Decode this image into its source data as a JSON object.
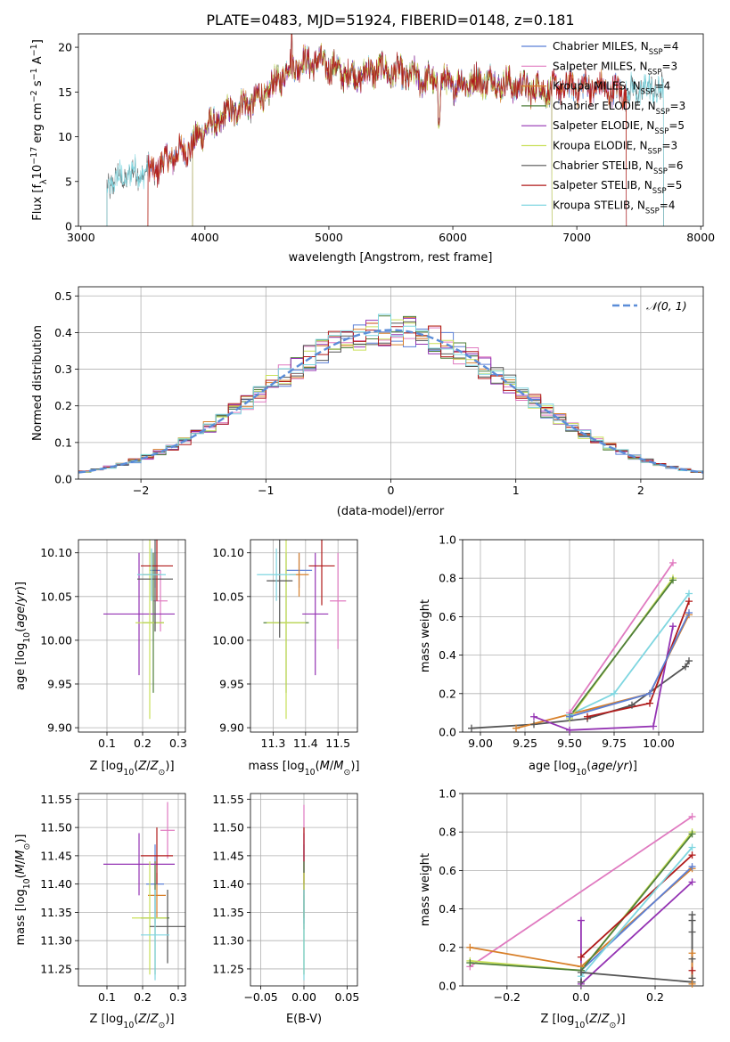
{
  "figure": {
    "title": "PLATE=0483, MJD=51924, FIBERID=0148, z=0.181"
  },
  "colors": {
    "chabrier_miles": "#5b7fd6",
    "salpeter_miles": "#e07ac0",
    "kroupa_miles": "#d8802a",
    "chabrier_elodie": "#4f7f3a",
    "salpeter_elodie": "#9433b3",
    "kroupa_elodie": "#c9e05a",
    "chabrier_stelib": "#555555",
    "salpeter_stelib": "#b01a1a",
    "kroupa_stelib": "#7fd6e0"
  },
  "chart_data": [
    {
      "id": "spectrum",
      "type": "line",
      "xlabel": "wavelength [Angstrom, rest frame]",
      "ylabel_text": "Flux [f",
      "xlim": [
        2980,
        8020
      ],
      "ylim": [
        0,
        21.5
      ],
      "xticks": [
        3000,
        4000,
        5000,
        6000,
        7000,
        8000
      ],
      "yticks": [
        0,
        5,
        10,
        15,
        20
      ],
      "legend_position": "top-right",
      "legend": [
        {
          "label": "Chabrier MILES, N",
          "n": "=4",
          "color_key": "chabrier_miles"
        },
        {
          "label": "Salpeter MILES, N",
          "n": "=3",
          "color_key": "salpeter_miles"
        },
        {
          "label": "Kroupa MILES, N",
          "n": "=4",
          "color_key": "kroupa_miles"
        },
        {
          "label": "Chabrier ELODIE, N",
          "n": "=3",
          "color_key": "chabrier_elodie"
        },
        {
          "label": "Salpeter ELODIE, N",
          "n": "=5",
          "color_key": "salpeter_elodie"
        },
        {
          "label": "Kroupa ELODIE, N",
          "n": "=3",
          "color_key": "kroupa_elodie"
        },
        {
          "label": "Chabrier STELIB, N",
          "n": "=6",
          "color_key": "chabrier_stelib"
        },
        {
          "label": "Salpeter STELIB, N",
          "n": "=5",
          "color_key": "salpeter_stelib"
        },
        {
          "label": "Kroupa STELIB, N",
          "n": "=4",
          "color_key": "kroupa_stelib"
        }
      ],
      "envelope": {
        "x": [
          3210,
          3300,
          3400,
          3500,
          3600,
          3700,
          3800,
          3900,
          4000,
          4100,
          4200,
          4300,
          4400,
          4500,
          4600,
          4700,
          4800,
          4900,
          5000,
          5100,
          5200,
          5300,
          5400,
          5500,
          5600,
          5700,
          5800,
          5900,
          6000,
          6100,
          6200,
          6300,
          6400,
          6500,
          6600,
          6700,
          6800,
          6900,
          7000,
          7100,
          7200,
          7300,
          7400,
          7500,
          7600,
          7700
        ],
        "y": [
          4.5,
          5.3,
          5.8,
          6.0,
          6.3,
          7.5,
          8.3,
          9.0,
          11.0,
          11.5,
          12.8,
          13.5,
          14.0,
          14.8,
          16.5,
          18.0,
          18.2,
          18.4,
          18.0,
          17.2,
          16.8,
          17.0,
          17.6,
          17.2,
          17.0,
          16.6,
          16.3,
          16.0,
          15.8,
          16.0,
          16.3,
          16.2,
          16.0,
          15.8,
          15.5,
          15.4,
          15.2,
          15.5,
          15.6,
          15.5,
          15.3,
          15.1,
          15.0,
          15.2,
          15.4,
          15.3
        ]
      },
      "series": [
        {
          "color_key": "chabrier_stelib",
          "xmin": 3210,
          "xmax": 7700
        },
        {
          "color_key": "kroupa_stelib",
          "xmin": 3210,
          "xmax": 7700
        },
        {
          "color_key": "chabrier_miles",
          "xmin": 3540,
          "xmax": 7400
        },
        {
          "color_key": "salpeter_miles",
          "xmin": 3540,
          "xmax": 7400
        },
        {
          "color_key": "kroupa_miles",
          "xmin": 3540,
          "xmax": 7400
        },
        {
          "color_key": "chabrier_elodie",
          "xmin": 3900,
          "xmax": 6800
        },
        {
          "color_key": "salpeter_elodie",
          "xmin": 3900,
          "xmax": 6800
        },
        {
          "color_key": "kroupa_elodie",
          "xmin": 3900,
          "xmax": 6800
        },
        {
          "color_key": "salpeter_stelib",
          "xmin": 3540,
          "xmax": 7400
        }
      ]
    },
    {
      "id": "residuals",
      "type": "line",
      "xlabel": "(data-model)/error",
      "ylabel": "Normed distribution",
      "xlim": [
        -2.5,
        2.5
      ],
      "ylim": [
        0,
        0.525
      ],
      "xticks": [
        -2,
        -1,
        0,
        1,
        2
      ],
      "xtick_labels": [
        "−2",
        "−1",
        "0",
        "1",
        "2"
      ],
      "yticks": [
        0.0,
        0.1,
        0.2,
        0.3,
        0.4,
        0.5
      ],
      "grid": true,
      "legend_position": "top-right",
      "legend_label": "𝒩(0, 1)",
      "gaussian_color": "#5b8dd8",
      "bin_width": 0.1
    },
    {
      "id": "age_vs_z",
      "type": "scatter",
      "xlabel": "Z [log₁₀(Z/Z⊙)]",
      "ylabel": "age  [log₁₀(age/yr)]",
      "xlim": [
        0.02,
        0.32
      ],
      "ylim": [
        9.895,
        10.115
      ],
      "xticks": [
        0.1,
        0.2,
        0.3
      ],
      "yticks": [
        9.9,
        9.95,
        10.0,
        10.05,
        10.1
      ],
      "grid": true,
      "points": [
        {
          "color_key": "chabrier_miles",
          "x": 0.235,
          "y": 10.08,
          "xe": 0.015,
          "ye": 0.02
        },
        {
          "color_key": "salpeter_miles",
          "x": 0.25,
          "y": 10.045,
          "xe": 0.02,
          "ye": 0.035
        },
        {
          "color_key": "kroupa_miles",
          "x": 0.225,
          "y": 10.075,
          "xe": 0.025,
          "ye": 0.025
        },
        {
          "color_key": "chabrier_elodie",
          "x": 0.23,
          "y": 10.02,
          "xe": 0.03,
          "ye": 0.08
        },
        {
          "color_key": "salpeter_elodie",
          "x": 0.19,
          "y": 10.03,
          "xe": 0.1,
          "ye": 0.07
        },
        {
          "color_key": "kroupa_elodie",
          "x": 0.22,
          "y": 10.02,
          "xe": 0.04,
          "ye": 0.11
        },
        {
          "color_key": "chabrier_stelib",
          "x": 0.235,
          "y": 10.07,
          "xe": 0.05,
          "ye": 0.06
        },
        {
          "color_key": "salpeter_stelib",
          "x": 0.24,
          "y": 10.085,
          "xe": 0.045,
          "ye": 0.04
        },
        {
          "color_key": "kroupa_stelib",
          "x": 0.225,
          "y": 10.075,
          "xe": 0.04,
          "ye": 0.03
        }
      ]
    },
    {
      "id": "age_vs_mass",
      "type": "scatter",
      "xlabel": "mass [log₁₀(M/M⊙)]",
      "xlim": [
        11.23,
        11.56
      ],
      "ylim": [
        9.895,
        10.115
      ],
      "xticks": [
        11.3,
        11.4,
        11.5
      ],
      "yticks": [
        9.9,
        9.95,
        10.0,
        10.05,
        10.1
      ],
      "grid": true,
      "points": [
        {
          "color_key": "chabrier_miles",
          "x": 11.38,
          "y": 10.08,
          "xe": 0.04,
          "ye": 0.02
        },
        {
          "color_key": "salpeter_miles",
          "x": 11.5,
          "y": 10.045,
          "xe": 0.025,
          "ye": 0.055
        },
        {
          "color_key": "kroupa_miles",
          "x": 11.38,
          "y": 10.075,
          "xe": 0.03,
          "ye": 0.025
        },
        {
          "color_key": "chabrier_elodie",
          "x": 11.34,
          "y": 10.02,
          "xe": 0.07,
          "ye": 0.08
        },
        {
          "color_key": "salpeter_elodie",
          "x": 11.43,
          "y": 10.03,
          "xe": 0.04,
          "ye": 0.07
        },
        {
          "color_key": "kroupa_elodie",
          "x": 11.34,
          "y": 10.02,
          "xe": 0.06,
          "ye": 0.11
        },
        {
          "color_key": "chabrier_stelib",
          "x": 11.32,
          "y": 10.068,
          "xe": 0.04,
          "ye": 0.065
        },
        {
          "color_key": "salpeter_stelib",
          "x": 11.45,
          "y": 10.085,
          "xe": 0.04,
          "ye": 0.045
        },
        {
          "color_key": "kroupa_stelib",
          "x": 11.31,
          "y": 10.075,
          "xe": 0.06,
          "ye": 0.03
        }
      ]
    },
    {
      "id": "massweight_vs_age",
      "type": "line",
      "xlabel": "age  [log₁₀(age/yr)]",
      "ylabel": "mass weight",
      "xlim": [
        8.9,
        10.25
      ],
      "ylim": [
        0,
        1.0
      ],
      "xticks": [
        9.0,
        9.25,
        9.5,
        9.75,
        10.0
      ],
      "xtick_labels": [
        "9.00",
        "9.25",
        "9.50",
        "9.75",
        "10.00"
      ],
      "yticks": [
        0.0,
        0.2,
        0.4,
        0.6,
        0.8,
        1.0
      ],
      "grid": true,
      "series": [
        {
          "color_key": "chabrier_stelib",
          "x": [
            8.95,
            9.3,
            9.6,
            9.85,
            10.15,
            10.17
          ],
          "y": [
            0.02,
            0.04,
            0.07,
            0.14,
            0.34,
            0.37
          ]
        },
        {
          "color_key": "kroupa_stelib",
          "x": [
            9.5,
            9.75,
            10.17
          ],
          "y": [
            0.09,
            0.2,
            0.72
          ]
        },
        {
          "color_key": "kroupa_miles",
          "x": [
            9.2,
            9.95,
            10.17
          ],
          "y": [
            0.02,
            0.2,
            0.61
          ]
        },
        {
          "color_key": "salpeter_miles",
          "x": [
            9.5,
            10.08
          ],
          "y": [
            0.1,
            0.88
          ]
        },
        {
          "color_key": "kroupa_elodie",
          "x": [
            9.5,
            10.08
          ],
          "y": [
            0.07,
            0.8
          ]
        },
        {
          "color_key": "chabrier_elodie",
          "x": [
            9.5,
            10.08
          ],
          "y": [
            0.08,
            0.79
          ]
        },
        {
          "color_key": "salpeter_elodie",
          "x": [
            9.3,
            9.5,
            9.97,
            10.08
          ],
          "y": [
            0.08,
            0.01,
            0.03,
            0.55
          ]
        },
        {
          "color_key": "salpeter_stelib",
          "x": [
            9.6,
            9.95,
            10.17
          ],
          "y": [
            0.08,
            0.15,
            0.68
          ]
        },
        {
          "color_key": "chabrier_miles",
          "x": [
            9.5,
            9.95,
            10.17
          ],
          "y": [
            0.08,
            0.2,
            0.62
          ]
        }
      ]
    },
    {
      "id": "mass_vs_z",
      "type": "scatter",
      "xlabel": "Z [log₁₀(Z/Z⊙)]",
      "ylabel": "mass [log₁₀(M/M⊙)]",
      "xlim": [
        0.02,
        0.32
      ],
      "ylim": [
        11.22,
        11.56
      ],
      "xticks": [
        0.1,
        0.2,
        0.3
      ],
      "yticks": [
        11.25,
        11.3,
        11.35,
        11.4,
        11.45,
        11.5,
        11.55
      ],
      "grid": true,
      "points": [
        {
          "color_key": "chabrier_miles",
          "x": 0.235,
          "y": 11.4,
          "xe": 0.025,
          "ye": 0.07
        },
        {
          "color_key": "salpeter_miles",
          "x": 0.27,
          "y": 11.495,
          "xe": 0.02,
          "ye": 0.05
        },
        {
          "color_key": "kroupa_miles",
          "x": 0.24,
          "y": 11.38,
          "xe": 0.025,
          "ye": 0.04
        },
        {
          "color_key": "chabrier_elodie",
          "x": 0.235,
          "y": 11.34,
          "xe": 0.04,
          "ye": 0.1
        },
        {
          "color_key": "salpeter_elodie",
          "x": 0.19,
          "y": 11.435,
          "xe": 0.1,
          "ye": 0.055
        },
        {
          "color_key": "kroupa_elodie",
          "x": 0.22,
          "y": 11.34,
          "xe": 0.05,
          "ye": 0.1
        },
        {
          "color_key": "chabrier_stelib",
          "x": 0.27,
          "y": 11.325,
          "xe": 0.05,
          "ye": 0.065
        },
        {
          "color_key": "salpeter_stelib",
          "x": 0.24,
          "y": 11.45,
          "xe": 0.045,
          "ye": 0.05
        },
        {
          "color_key": "kroupa_stelib",
          "x": 0.235,
          "y": 11.31,
          "xe": 0.04,
          "ye": 0.08
        }
      ]
    },
    {
      "id": "mass_vs_ebv",
      "type": "scatter",
      "xlabel": "E(B-V)",
      "xlim": [
        -0.062,
        0.062
      ],
      "ylim": [
        11.22,
        11.56
      ],
      "xticks": [
        -0.05,
        0.0,
        0.05
      ],
      "xtick_labels": [
        "−0.05",
        "0.00",
        "0.05"
      ],
      "yticks": [
        11.25,
        11.3,
        11.35,
        11.4,
        11.45,
        11.5,
        11.55
      ],
      "grid": true,
      "points": [
        {
          "color_key": "salpeter_miles",
          "x": 0.0,
          "y": 11.49,
          "ye": 0.05
        },
        {
          "color_key": "chabrier_miles",
          "x": 0.0,
          "y": 11.4,
          "ye": 0.07
        },
        {
          "color_key": "salpeter_elodie",
          "x": 0.0,
          "y": 11.435,
          "ye": 0.055
        },
        {
          "color_key": "salpeter_stelib",
          "x": 0.0,
          "y": 11.45,
          "ye": 0.05
        },
        {
          "color_key": "kroupa_miles",
          "x": 0.0,
          "y": 11.38,
          "ye": 0.04
        },
        {
          "color_key": "chabrier_stelib",
          "x": 0.0,
          "y": 11.35,
          "ye": 0.03
        },
        {
          "color_key": "chabrier_elodie",
          "x": 0.0,
          "y": 11.34,
          "ye": 0.1
        },
        {
          "color_key": "kroupa_elodie",
          "x": 0.0,
          "y": 11.33,
          "ye": 0.09
        },
        {
          "color_key": "kroupa_stelib",
          "x": 0.0,
          "y": 11.31,
          "ye": 0.08
        }
      ]
    },
    {
      "id": "massweight_vs_z",
      "type": "line",
      "xlabel": "Z [log₁₀(Z/Z⊙)]",
      "ylabel": "mass weight",
      "xlim": [
        -0.32,
        0.33
      ],
      "ylim": [
        0,
        1.0
      ],
      "xticks": [
        -0.2,
        0.0,
        0.2
      ],
      "xtick_labels": [
        "−0.2",
        "0.0",
        "0.2"
      ],
      "yticks": [
        0.0,
        0.2,
        0.4,
        0.6,
        0.8,
        1.0
      ],
      "grid": true,
      "series": [
        {
          "color_key": "salpeter_miles",
          "x": [
            -0.3,
            0.3
          ],
          "y": [
            0.1,
            0.88
          ]
        },
        {
          "color_key": "kroupa_miles",
          "x": [
            -0.3,
            0.0,
            0.3
          ],
          "y": [
            0.2,
            0.1,
            0.61
          ]
        },
        {
          "color_key": "chabrier_miles",
          "x": [
            0.0,
            0.3
          ],
          "y": [
            0.08,
            0.62
          ]
        },
        {
          "color_key": "kroupa_elodie",
          "x": [
            -0.3,
            0.0,
            0.3
          ],
          "y": [
            0.13,
            0.08,
            0.8
          ]
        },
        {
          "color_key": "chabrier_elodie",
          "x": [
            -0.3,
            0.0,
            0.3
          ],
          "y": [
            0.12,
            0.08,
            0.79
          ]
        },
        {
          "color_key": "salpeter_elodie",
          "x": [
            0.0,
            0.0,
            0.3
          ],
          "y": [
            0.34,
            0.01,
            0.54
          ]
        },
        {
          "color_key": "salpeter_stelib",
          "x": [
            0.0,
            0.3
          ],
          "y": [
            0.15,
            0.68
          ]
        },
        {
          "color_key": "kroupa_stelib",
          "x": [
            0.0,
            0.3
          ],
          "y": [
            0.05,
            0.72
          ]
        },
        {
          "color_key": "chabrier_stelib",
          "x": [
            0.0,
            0.0,
            0.3
          ],
          "y": [
            0.02,
            0.07,
            0.02
          ]
        }
      ],
      "edge_points": [
        {
          "color_key": "chabrier_stelib",
          "x": 0.3,
          "y": [
            0.37,
            0.34,
            0.28,
            0.14,
            0.04
          ]
        },
        {
          "color_key": "kroupa_miles",
          "x": 0.3,
          "y": [
            0.17,
            0.01
          ]
        },
        {
          "color_key": "salpeter_stelib",
          "x": 0.3,
          "y": [
            0.08
          ]
        }
      ]
    }
  ]
}
